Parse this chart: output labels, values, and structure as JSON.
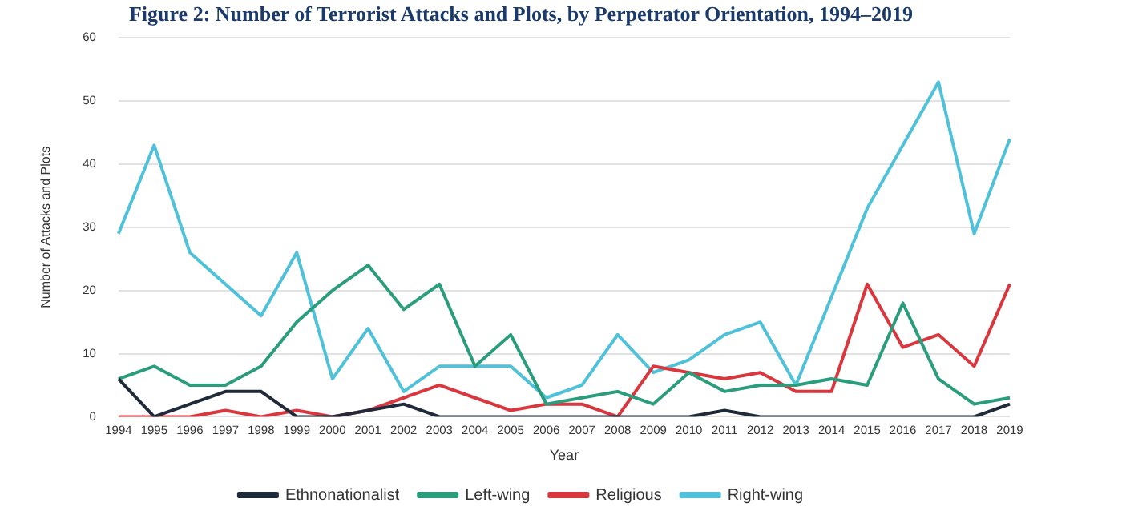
{
  "chart_data": {
    "type": "line",
    "title": "Figure 2: Number of Terrorist Attacks and Plots, by Perpetrator Orientation, 1994–2019",
    "xlabel": "Year",
    "ylabel": "Number of Attacks and Plots",
    "categories": [
      "1994",
      "1995",
      "1996",
      "1997",
      "1998",
      "1999",
      "2000",
      "2001",
      "2002",
      "2003",
      "2004",
      "2005",
      "2006",
      "2007",
      "2008",
      "2009",
      "2010",
      "2011",
      "2012",
      "2013",
      "2014",
      "2015",
      "2016",
      "2017",
      "2018",
      "2019"
    ],
    "series": [
      {
        "name": "Ethnonationalist",
        "color": "#1f2a3a",
        "values": [
          6,
          0,
          2,
          4,
          4,
          0,
          0,
          1,
          2,
          0,
          0,
          0,
          0,
          0,
          0,
          0,
          0,
          1,
          0,
          0,
          0,
          0,
          0,
          0,
          0,
          2
        ]
      },
      {
        "name": "Left-wing",
        "color": "#2a9d7c",
        "values": [
          6,
          8,
          5,
          5,
          8,
          15,
          20,
          24,
          17,
          21,
          8,
          13,
          2,
          3,
          4,
          2,
          7,
          4,
          5,
          5,
          6,
          5,
          18,
          6,
          2,
          3
        ]
      },
      {
        "name": "Religious",
        "color": "#d9363e",
        "values": [
          0,
          0,
          0,
          1,
          0,
          1,
          0,
          1,
          3,
          5,
          3,
          1,
          2,
          2,
          0,
          8,
          7,
          6,
          7,
          4,
          4,
          21,
          11,
          13,
          8,
          21
        ]
      },
      {
        "name": "Right-wing",
        "color": "#4fc1d9",
        "values": [
          29,
          43,
          26,
          21,
          16,
          26,
          6,
          14,
          4,
          8,
          8,
          8,
          3,
          5,
          13,
          7,
          9,
          13,
          15,
          5,
          19,
          33,
          43,
          53,
          29,
          44
        ]
      }
    ],
    "ylim": [
      0,
      60
    ],
    "yticks": [
      0,
      10,
      20,
      30,
      40,
      50,
      60
    ],
    "grid": "y",
    "legend": "bottom",
    "marker": "none",
    "line_style": "solid"
  }
}
